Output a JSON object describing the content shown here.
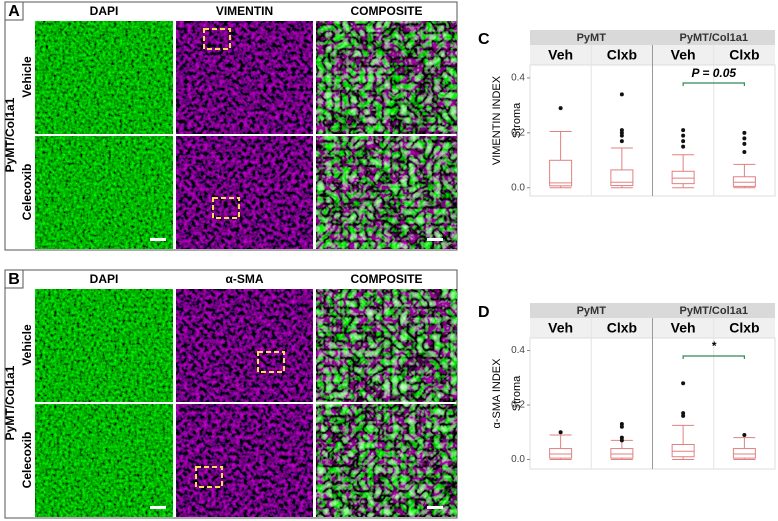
{
  "image_panels": [
    {
      "label": "A",
      "columns": [
        "DAPI",
        "VIMENTIN",
        "COMPOSITE"
      ],
      "rows": [
        "Vehicle",
        "Celecoxib"
      ],
      "group": "PyMT/Col1a1"
    },
    {
      "label": "B",
      "columns": [
        "DAPI",
        "α-SMA",
        "COMPOSITE"
      ],
      "rows": [
        "Vehicle",
        "Celecoxib"
      ],
      "group": "PyMT/Col1a1"
    }
  ],
  "chart_data": [
    {
      "type": "box",
      "label": "C",
      "ylabel": "VIMENTIN INDEX",
      "facet_label": "Stroma",
      "groups": [
        "PyMT",
        "PyMT/Col1a1"
      ],
      "categories": [
        "Veh",
        "Clxb",
        "Veh",
        "Clxb"
      ],
      "color": "#e08080",
      "annotation": "P = 0.05",
      "annotation_color": "#2e8b57",
      "ylim": [
        -0.03,
        0.447
      ],
      "yticks": [
        {
          "value": 0,
          "label": "0.0"
        },
        0.2,
        0.4
      ],
      "boxes": [
        {
          "min": 0,
          "q1": 0.007,
          "median": 0.018,
          "q3": 0.1,
          "max": 0.205,
          "outliers": [
            0.29
          ]
        },
        {
          "min": 0,
          "q1": 0.008,
          "median": 0.02,
          "q3": 0.065,
          "max": 0.145,
          "outliers": [
            0.34,
            0.21,
            0.2,
            0.19,
            0.17
          ]
        },
        {
          "min": 0,
          "q1": 0.015,
          "median": 0.035,
          "q3": 0.06,
          "max": 0.12,
          "outliers": [
            0.21,
            0.19,
            0.17,
            0.15
          ]
        },
        {
          "min": 0,
          "q1": 0.005,
          "median": 0.02,
          "q3": 0.04,
          "max": 0.085,
          "outliers": [
            0.2,
            0.18,
            0.16,
            0.13
          ]
        }
      ]
    },
    {
      "type": "box",
      "label": "D",
      "ylabel": "α-SMA INDEX",
      "facet_label": "Stroma",
      "groups": [
        "PyMT",
        "PyMT/Col1a1"
      ],
      "categories": [
        "Veh",
        "Clxb",
        "Veh",
        "Clxb"
      ],
      "color": "#e08080",
      "annotation": "*",
      "annotation_color": "#2e8b57",
      "ylim": [
        -0.035,
        0.446
      ],
      "yticks": [
        {
          "value": 0,
          "label": "0.0"
        },
        0.2,
        0.4
      ],
      "boxes": [
        {
          "min": 0,
          "q1": 0.005,
          "median": 0.02,
          "q3": 0.04,
          "max": 0.09,
          "outliers": [
            0.1
          ]
        },
        {
          "min": 0,
          "q1": 0.005,
          "median": 0.02,
          "q3": 0.04,
          "max": 0.07,
          "outliers": [
            0.13,
            0.12,
            0.08,
            0.07
          ]
        },
        {
          "min": 0,
          "q1": 0.01,
          "median": 0.03,
          "q3": 0.055,
          "max": 0.125,
          "outliers": [
            0.28,
            0.17,
            0.16
          ]
        },
        {
          "min": 0,
          "q1": 0.005,
          "median": 0.02,
          "q3": 0.04,
          "max": 0.08,
          "outliers": [
            0.09
          ]
        }
      ]
    }
  ]
}
